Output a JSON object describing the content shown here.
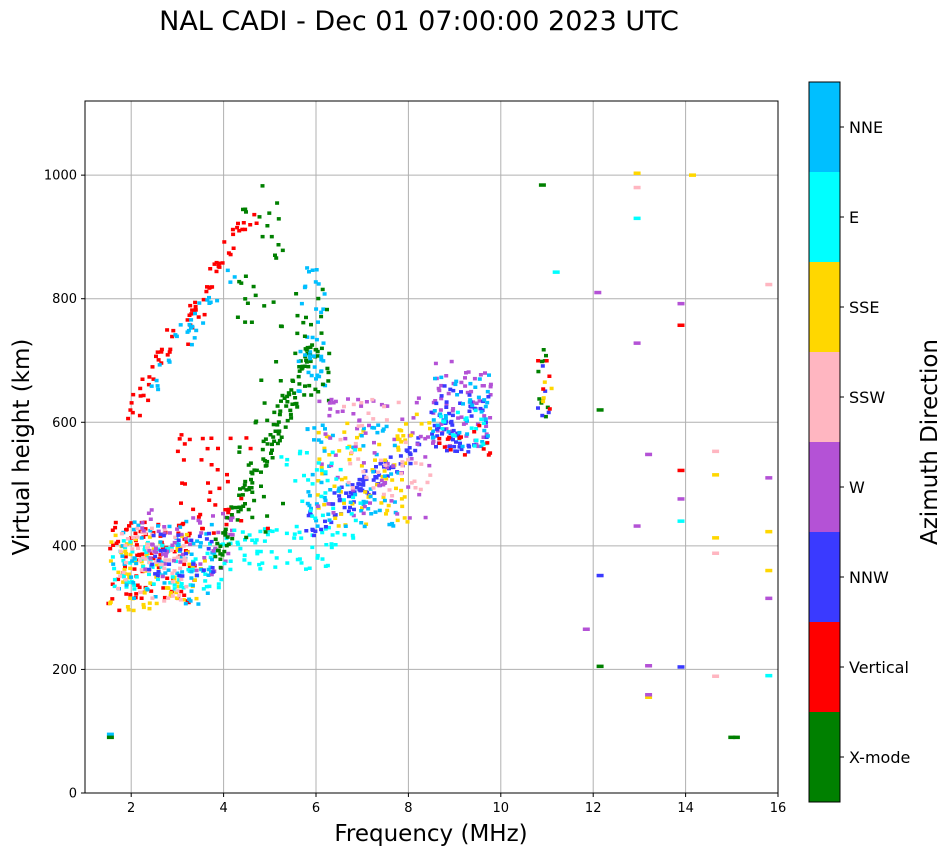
{
  "chart_data": {
    "type": "scatter",
    "title": "NAL CADI - Dec 01 07:00:00 2023 UTC",
    "xlabel": "Frequency (MHz)",
    "ylabel": "Virtual height (km)",
    "xlim": [
      1,
      16
    ],
    "ylim": [
      0,
      1120
    ],
    "xticks": [
      2,
      4,
      6,
      8,
      10,
      12,
      14,
      16
    ],
    "yticks": [
      0,
      200,
      400,
      600,
      800,
      1000
    ],
    "grid": true,
    "colorbar": {
      "title": "Azimuth Direction",
      "categories": [
        {
          "name": "X-mode",
          "color": "#008000"
        },
        {
          "name": "Vertical",
          "color": "#ff0000"
        },
        {
          "name": "NNW",
          "color": "#3a3aff"
        },
        {
          "name": "W",
          "color": "#b452d6"
        },
        {
          "name": "SSW",
          "color": "#ffb6c1"
        },
        {
          "name": "SSE",
          "color": "#ffd700"
        },
        {
          "name": "E",
          "color": "#00ffff"
        },
        {
          "name": "NNE",
          "color": "#00bfff"
        }
      ]
    },
    "clusters": [
      {
        "name": "Vertical",
        "f": [
          1.5,
          3.4
        ],
        "h": [
          295,
          440
        ],
        "n": 90
      },
      {
        "name": "SSE",
        "f": [
          1.5,
          3.6
        ],
        "h": [
          295,
          420
        ],
        "n": 80
      },
      {
        "name": "E",
        "f": [
          1.6,
          4.0
        ],
        "h": [
          330,
          410
        ],
        "n": 80
      },
      {
        "name": "NNE",
        "f": [
          1.6,
          3.8
        ],
        "h": [
          300,
          440
        ],
        "n": 70
      },
      {
        "name": "SSW",
        "f": [
          1.7,
          3.2
        ],
        "h": [
          310,
          430
        ],
        "n": 60
      },
      {
        "name": "W",
        "f": [
          2.2,
          4.2
        ],
        "h": [
          350,
          460
        ],
        "n": 60
      },
      {
        "name": "NNW",
        "f": [
          2.3,
          3.8
        ],
        "h": [
          350,
          420
        ],
        "n": 30
      },
      {
        "name": "E",
        "f": [
          4.0,
          6.5
        ],
        "h": [
          360,
          430
        ],
        "n": 60
      },
      {
        "name": "Vertical",
        "f": [
          2.0,
          4.6
        ],
        "h": [
          620,
          930
        ],
        "n": 70,
        "trend": [
          2.0,
          620,
          4.6,
          930
        ]
      },
      {
        "name": "NNE",
        "f": [
          2.4,
          4.2
        ],
        "h": [
          640,
          860
        ],
        "n": 30,
        "trend": [
          2.4,
          640,
          4.2,
          860
        ]
      },
      {
        "name": "X-mode",
        "f": [
          3.8,
          6.0
        ],
        "h": [
          380,
          720
        ],
        "n": 110,
        "trend": [
          3.8,
          380,
          6.0,
          720
        ]
      },
      {
        "name": "X-mode",
        "f": [
          4.3,
          5.3
        ],
        "h": [
          400,
          990
        ],
        "n": 60
      },
      {
        "name": "NNE",
        "f": [
          5.6,
          6.2
        ],
        "h": [
          650,
          850
        ],
        "n": 40
      },
      {
        "name": "X-mode",
        "f": [
          5.5,
          6.3
        ],
        "h": [
          620,
          820
        ],
        "n": 30
      },
      {
        "name": "Vertical",
        "f": [
          3.0,
          5.0
        ],
        "h": [
          420,
          580
        ],
        "n": 40
      },
      {
        "name": "NNW",
        "f": [
          5.8,
          8.2
        ],
        "h": [
          420,
          580
        ],
        "n": 90,
        "trend": [
          5.8,
          430,
          8.2,
          560
        ]
      },
      {
        "name": "SSE",
        "f": [
          6.0,
          8.0
        ],
        "h": [
          430,
          600
        ],
        "n": 70
      },
      {
        "name": "NNE",
        "f": [
          5.8,
          7.8
        ],
        "h": [
          430,
          600
        ],
        "n": 70
      },
      {
        "name": "W",
        "f": [
          6.0,
          8.6
        ],
        "h": [
          440,
          640
        ],
        "n": 70
      },
      {
        "name": "SSW",
        "f": [
          6.5,
          8.5
        ],
        "h": [
          480,
          640
        ],
        "n": 40
      },
      {
        "name": "E",
        "f": [
          5.2,
          7.0
        ],
        "h": [
          410,
          560
        ],
        "n": 40
      },
      {
        "name": "W",
        "f": [
          8.5,
          9.8
        ],
        "h": [
          550,
          700
        ],
        "n": 60
      },
      {
        "name": "NNW",
        "f": [
          8.5,
          9.8
        ],
        "h": [
          550,
          660
        ],
        "n": 60
      },
      {
        "name": "NNE",
        "f": [
          8.5,
          9.8
        ],
        "h": [
          560,
          680
        ],
        "n": 40
      },
      {
        "name": "E",
        "f": [
          8.7,
          9.8
        ],
        "h": [
          560,
          620
        ],
        "n": 20
      },
      {
        "name": "Vertical",
        "f": [
          8.6,
          9.8
        ],
        "h": [
          545,
          600
        ],
        "n": 15
      },
      {
        "name": "SSE",
        "f": [
          7.6,
          8.8
        ],
        "h": [
          560,
          640
        ],
        "n": 10
      },
      {
        "name": "X-mode",
        "f": [
          10.8,
          11.1
        ],
        "h": [
          600,
          720
        ],
        "n": 10
      },
      {
        "name": "NNW",
        "f": [
          10.8,
          11.1
        ],
        "h": [
          600,
          720
        ],
        "n": 5
      },
      {
        "name": "Vertical",
        "f": [
          10.8,
          11.1
        ],
        "h": [
          620,
          720
        ],
        "n": 5
      },
      {
        "name": "SSE",
        "f": [
          10.9,
          11.1
        ],
        "h": [
          620,
          690
        ],
        "n": 4
      }
    ],
    "isolated_points": [
      {
        "name": "NNE",
        "f": 1.55,
        "h": 95
      },
      {
        "name": "X-mode",
        "f": 1.55,
        "h": 90
      },
      {
        "name": "X-mode",
        "f": 10.9,
        "h": 984
      },
      {
        "name": "E",
        "f": 11.2,
        "h": 843
      },
      {
        "name": "W",
        "f": 12.1,
        "h": 810
      },
      {
        "name": "X-mode",
        "f": 12.15,
        "h": 620
      },
      {
        "name": "NNW",
        "f": 12.15,
        "h": 352
      },
      {
        "name": "W",
        "f": 11.85,
        "h": 265
      },
      {
        "name": "X-mode",
        "f": 12.15,
        "h": 205
      },
      {
        "name": "SSE",
        "f": 12.95,
        "h": 1003
      },
      {
        "name": "SSW",
        "f": 12.95,
        "h": 980
      },
      {
        "name": "E",
        "f": 12.95,
        "h": 930
      },
      {
        "name": "W",
        "f": 12.95,
        "h": 728
      },
      {
        "name": "W",
        "f": 13.2,
        "h": 548
      },
      {
        "name": "W",
        "f": 12.95,
        "h": 432
      },
      {
        "name": "W",
        "f": 13.2,
        "h": 206
      },
      {
        "name": "SSE",
        "f": 13.2,
        "h": 155
      },
      {
        "name": "W",
        "f": 13.2,
        "h": 159
      },
      {
        "name": "W",
        "f": 13.9,
        "h": 792
      },
      {
        "name": "Vertical",
        "f": 13.9,
        "h": 757
      },
      {
        "name": "Vertical",
        "f": 13.9,
        "h": 522
      },
      {
        "name": "W",
        "f": 13.9,
        "h": 476
      },
      {
        "name": "E",
        "f": 13.9,
        "h": 440
      },
      {
        "name": "NNW",
        "f": 13.9,
        "h": 204
      },
      {
        "name": "SSE",
        "f": 14.15,
        "h": 1000
      },
      {
        "name": "SSW",
        "f": 14.65,
        "h": 553
      },
      {
        "name": "SSE",
        "f": 14.65,
        "h": 515
      },
      {
        "name": "SSE",
        "f": 14.65,
        "h": 413
      },
      {
        "name": "SSW",
        "f": 14.65,
        "h": 388
      },
      {
        "name": "SSW",
        "f": 14.65,
        "h": 189
      },
      {
        "name": "X-mode",
        "f": 15.0,
        "h": 90
      },
      {
        "name": "X-mode",
        "f": 15.1,
        "h": 90
      },
      {
        "name": "SSW",
        "f": 15.8,
        "h": 823
      },
      {
        "name": "W",
        "f": 15.8,
        "h": 510
      },
      {
        "name": "SSE",
        "f": 15.8,
        "h": 423
      },
      {
        "name": "SSE",
        "f": 15.8,
        "h": 360
      },
      {
        "name": "W",
        "f": 15.8,
        "h": 315
      },
      {
        "name": "E",
        "f": 15.8,
        "h": 190
      }
    ]
  }
}
